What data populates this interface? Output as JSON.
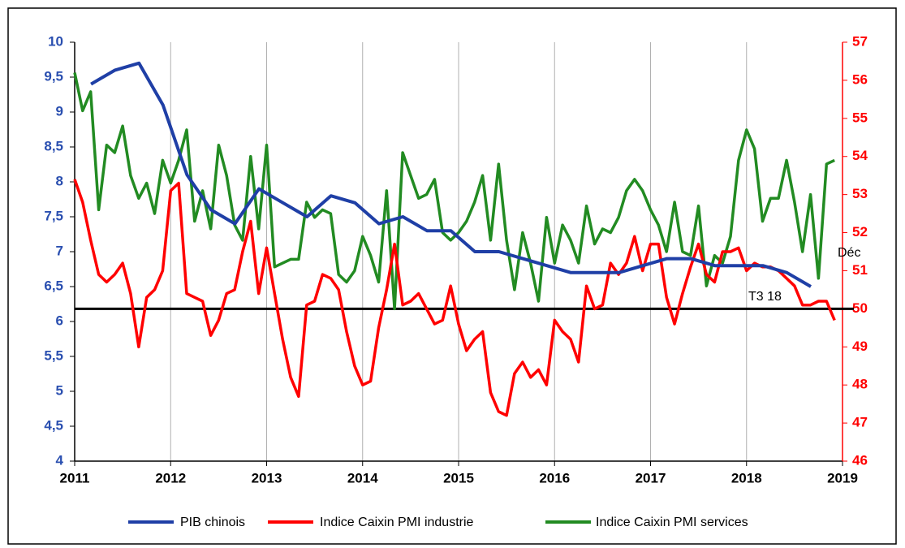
{
  "chart_data": {
    "type": "line",
    "xlim": [
      2011,
      2019
    ],
    "xticks": [
      2011,
      2012,
      2013,
      2014,
      2015,
      2016,
      2017,
      2018,
      2019
    ],
    "ylim": [
      4,
      10
    ],
    "yticks": [
      4,
      {
        "value": 4.5,
        "label": "4,5"
      },
      5,
      {
        "value": 5.5,
        "label": "5,5"
      },
      6,
      {
        "value": 6.5,
        "label": "6,5"
      },
      7,
      {
        "value": 7.5,
        "label": "7,5"
      },
      8,
      {
        "value": 8.5,
        "label": "8,5"
      },
      9,
      {
        "value": 9.5,
        "label": "9,5"
      },
      10
    ],
    "y2lim": [
      46,
      57
    ],
    "y2ticks": [
      46,
      47,
      48,
      49,
      50,
      51,
      52,
      53,
      54,
      55,
      56,
      57
    ],
    "x": [
      2011,
      2011.083,
      2011.167,
      2011.25,
      2011.333,
      2011.417,
      2011.5,
      2011.583,
      2011.667,
      2011.75,
      2011.833,
      2011.917,
      2012,
      2012.083,
      2012.167,
      2012.25,
      2012.333,
      2012.417,
      2012.5,
      2012.583,
      2012.667,
      2012.75,
      2012.833,
      2012.917,
      2013,
      2013.083,
      2013.167,
      2013.25,
      2013.333,
      2013.417,
      2013.5,
      2013.583,
      2013.667,
      2013.75,
      2013.833,
      2013.917,
      2014,
      2014.083,
      2014.167,
      2014.25,
      2014.333,
      2014.417,
      2014.5,
      2014.583,
      2014.667,
      2014.75,
      2014.833,
      2014.917,
      2015,
      2015.083,
      2015.167,
      2015.25,
      2015.333,
      2015.417,
      2015.5,
      2015.583,
      2015.667,
      2015.75,
      2015.833,
      2015.917,
      2016,
      2016.083,
      2016.167,
      2016.25,
      2016.333,
      2016.417,
      2016.5,
      2016.583,
      2016.667,
      2016.75,
      2016.833,
      2016.917,
      2017,
      2017.083,
      2017.167,
      2017.25,
      2017.333,
      2017.417,
      2017.5,
      2017.583,
      2017.667,
      2017.75,
      2017.833,
      2017.917,
      2018,
      2018.083,
      2018.167,
      2018.25,
      2018.333,
      2018.417,
      2018.5,
      2018.583,
      2018.667,
      2018.75,
      2018.833,
      2018.917
    ],
    "series": [
      {
        "name": "PIB chinois",
        "color": "#1f3fa6",
        "axis": "y",
        "x": [
          2011.17,
          2011.42,
          2011.67,
          2011.92,
          2012.17,
          2012.42,
          2012.67,
          2012.92,
          2013.17,
          2013.42,
          2013.67,
          2013.92,
          2014.17,
          2014.42,
          2014.67,
          2014.92,
          2015.17,
          2015.42,
          2015.67,
          2015.92,
          2016.17,
          2016.42,
          2016.67,
          2016.92,
          2017.17,
          2017.42,
          2017.67,
          2017.92,
          2018.17,
          2018.42,
          2018.67
        ],
        "values": [
          9.4,
          9.6,
          9.7,
          9.1,
          8.1,
          7.6,
          7.4,
          7.9,
          7.7,
          7.5,
          7.8,
          7.7,
          7.4,
          7.5,
          7.3,
          7.3,
          7.0,
          7.0,
          6.9,
          6.8,
          6.7,
          6.7,
          6.7,
          6.8,
          6.9,
          6.9,
          6.8,
          6.8,
          6.8,
          6.7,
          6.5
        ]
      },
      {
        "name": "Indice Caixin PMI industrie",
        "color": "#ff0000",
        "axis": "y2",
        "values": [
          53.4,
          52.8,
          51.8,
          50.9,
          50.7,
          50.9,
          51.2,
          50.4,
          49.0,
          50.3,
          50.5,
          51.0,
          53.1,
          53.3,
          50.4,
          50.3,
          50.2,
          49.3,
          49.7,
          50.4,
          50.5,
          51.5,
          52.3,
          50.4,
          51.6,
          50.4,
          49.2,
          48.2,
          47.7,
          50.1,
          50.2,
          50.9,
          50.8,
          50.5,
          49.4,
          48.5,
          48.0,
          48.1,
          49.5,
          50.5,
          51.7,
          50.1,
          50.2,
          50.4,
          50.0,
          49.6,
          49.7,
          50.6,
          49.6,
          48.9,
          49.2,
          49.4,
          47.8,
          47.3,
          47.2,
          48.3,
          48.6,
          48.2,
          48.4,
          48.0,
          49.7,
          49.4,
          49.2,
          48.6,
          50.6,
          50.0,
          50.1,
          51.2,
          50.9,
          51.2,
          51.9,
          51.0,
          51.7,
          51.7,
          50.3,
          49.6,
          50.4,
          51.1,
          51.7,
          50.9,
          50.7,
          51.5,
          51.5,
          51.6,
          51.0,
          51.2,
          51.1,
          51.1,
          51.0,
          50.8,
          50.6,
          50.1,
          50.1,
          50.2,
          50.2,
          49.7
        ]
      },
      {
        "name": "Indice Caixin PMI services",
        "color": "#228b22",
        "axis": "y2",
        "values": [
          56.2,
          55.2,
          55.7,
          52.6,
          54.3,
          54.1,
          54.8,
          53.5,
          52.9,
          53.3,
          52.5,
          53.9,
          53.3,
          53.9,
          54.7,
          52.3,
          53.1,
          52.1,
          54.3,
          53.5,
          52.2,
          51.8,
          54.0,
          52.1,
          54.3,
          51.1,
          51.2,
          51.3,
          51.3,
          52.8,
          52.4,
          52.6,
          52.5,
          50.9,
          50.7,
          51.0,
          51.9,
          51.4,
          50.7,
          53.1,
          50.0,
          54.1,
          53.5,
          52.9,
          53.0,
          53.4,
          52.0,
          51.8,
          52.0,
          52.3,
          52.8,
          53.5,
          51.8,
          53.8,
          51.8,
          50.5,
          52.0,
          51.2,
          50.2,
          52.4,
          51.2,
          52.2,
          51.8,
          51.2,
          52.7,
          51.7,
          52.1,
          52.0,
          52.4,
          53.1,
          53.4,
          53.1,
          52.6,
          52.2,
          51.5,
          52.8,
          51.5,
          51.4,
          52.7,
          50.6,
          51.4,
          51.2,
          51.9,
          53.9,
          54.7,
          54.2,
          52.3,
          52.9,
          52.9,
          53.9,
          52.8,
          51.5,
          53.0,
          50.8,
          53.8,
          53.9
        ]
      }
    ],
    "hline": {
      "value": 50,
      "axis": "y2",
      "color": "#000000"
    },
    "annotations": [
      "Déc",
      "T3 18"
    ],
    "grid": true,
    "legend": "bottom"
  }
}
